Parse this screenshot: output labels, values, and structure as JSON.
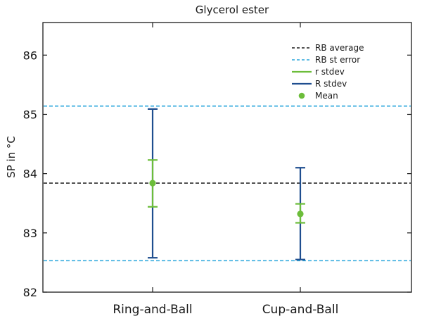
{
  "chart_data": {
    "type": "errorbar",
    "title": "Glycerol ester",
    "xlabel": "",
    "ylabel": "SP in °C",
    "ylim": [
      82,
      86.55
    ],
    "yticks": [
      82,
      83,
      84,
      85,
      86
    ],
    "categories": [
      "Ring-and-Ball",
      "Cup-and-Ball"
    ],
    "reference_lines": [
      {
        "name": "RB average",
        "value": 83.84,
        "style": "dashed",
        "color": "#1a1a1a"
      },
      {
        "name": "RB st error",
        "value": 85.14,
        "style": "dashed",
        "color": "#2aa6dc"
      },
      {
        "name": "RB st error",
        "value": 82.53,
        "style": "dashed",
        "color": "#2aa6dc"
      }
    ],
    "series": [
      {
        "name": "R stdev",
        "color": "#1f4e8f",
        "low": [
          82.58,
          82.55
        ],
        "high": [
          85.09,
          84.1
        ]
      },
      {
        "name": "r stdev",
        "color": "#6cbd3a",
        "low": [
          83.44,
          83.17
        ],
        "high": [
          84.23,
          83.49
        ]
      },
      {
        "name": "Mean",
        "color": "#6cbd3a",
        "values": [
          83.84,
          83.32
        ]
      }
    ],
    "legend": {
      "position": "top-right",
      "entries": [
        {
          "label": "RB average",
          "kind": "dashed",
          "color": "#1a1a1a"
        },
        {
          "label": "RB st error",
          "kind": "dashed",
          "color": "#2aa6dc"
        },
        {
          "label": "r stdev",
          "kind": "line",
          "color": "#6cbd3a"
        },
        {
          "label": "R stdev",
          "kind": "line",
          "color": "#1f4e8f"
        },
        {
          "label": "Mean",
          "kind": "dot",
          "color": "#6cbd3a"
        }
      ]
    },
    "grid": false
  }
}
